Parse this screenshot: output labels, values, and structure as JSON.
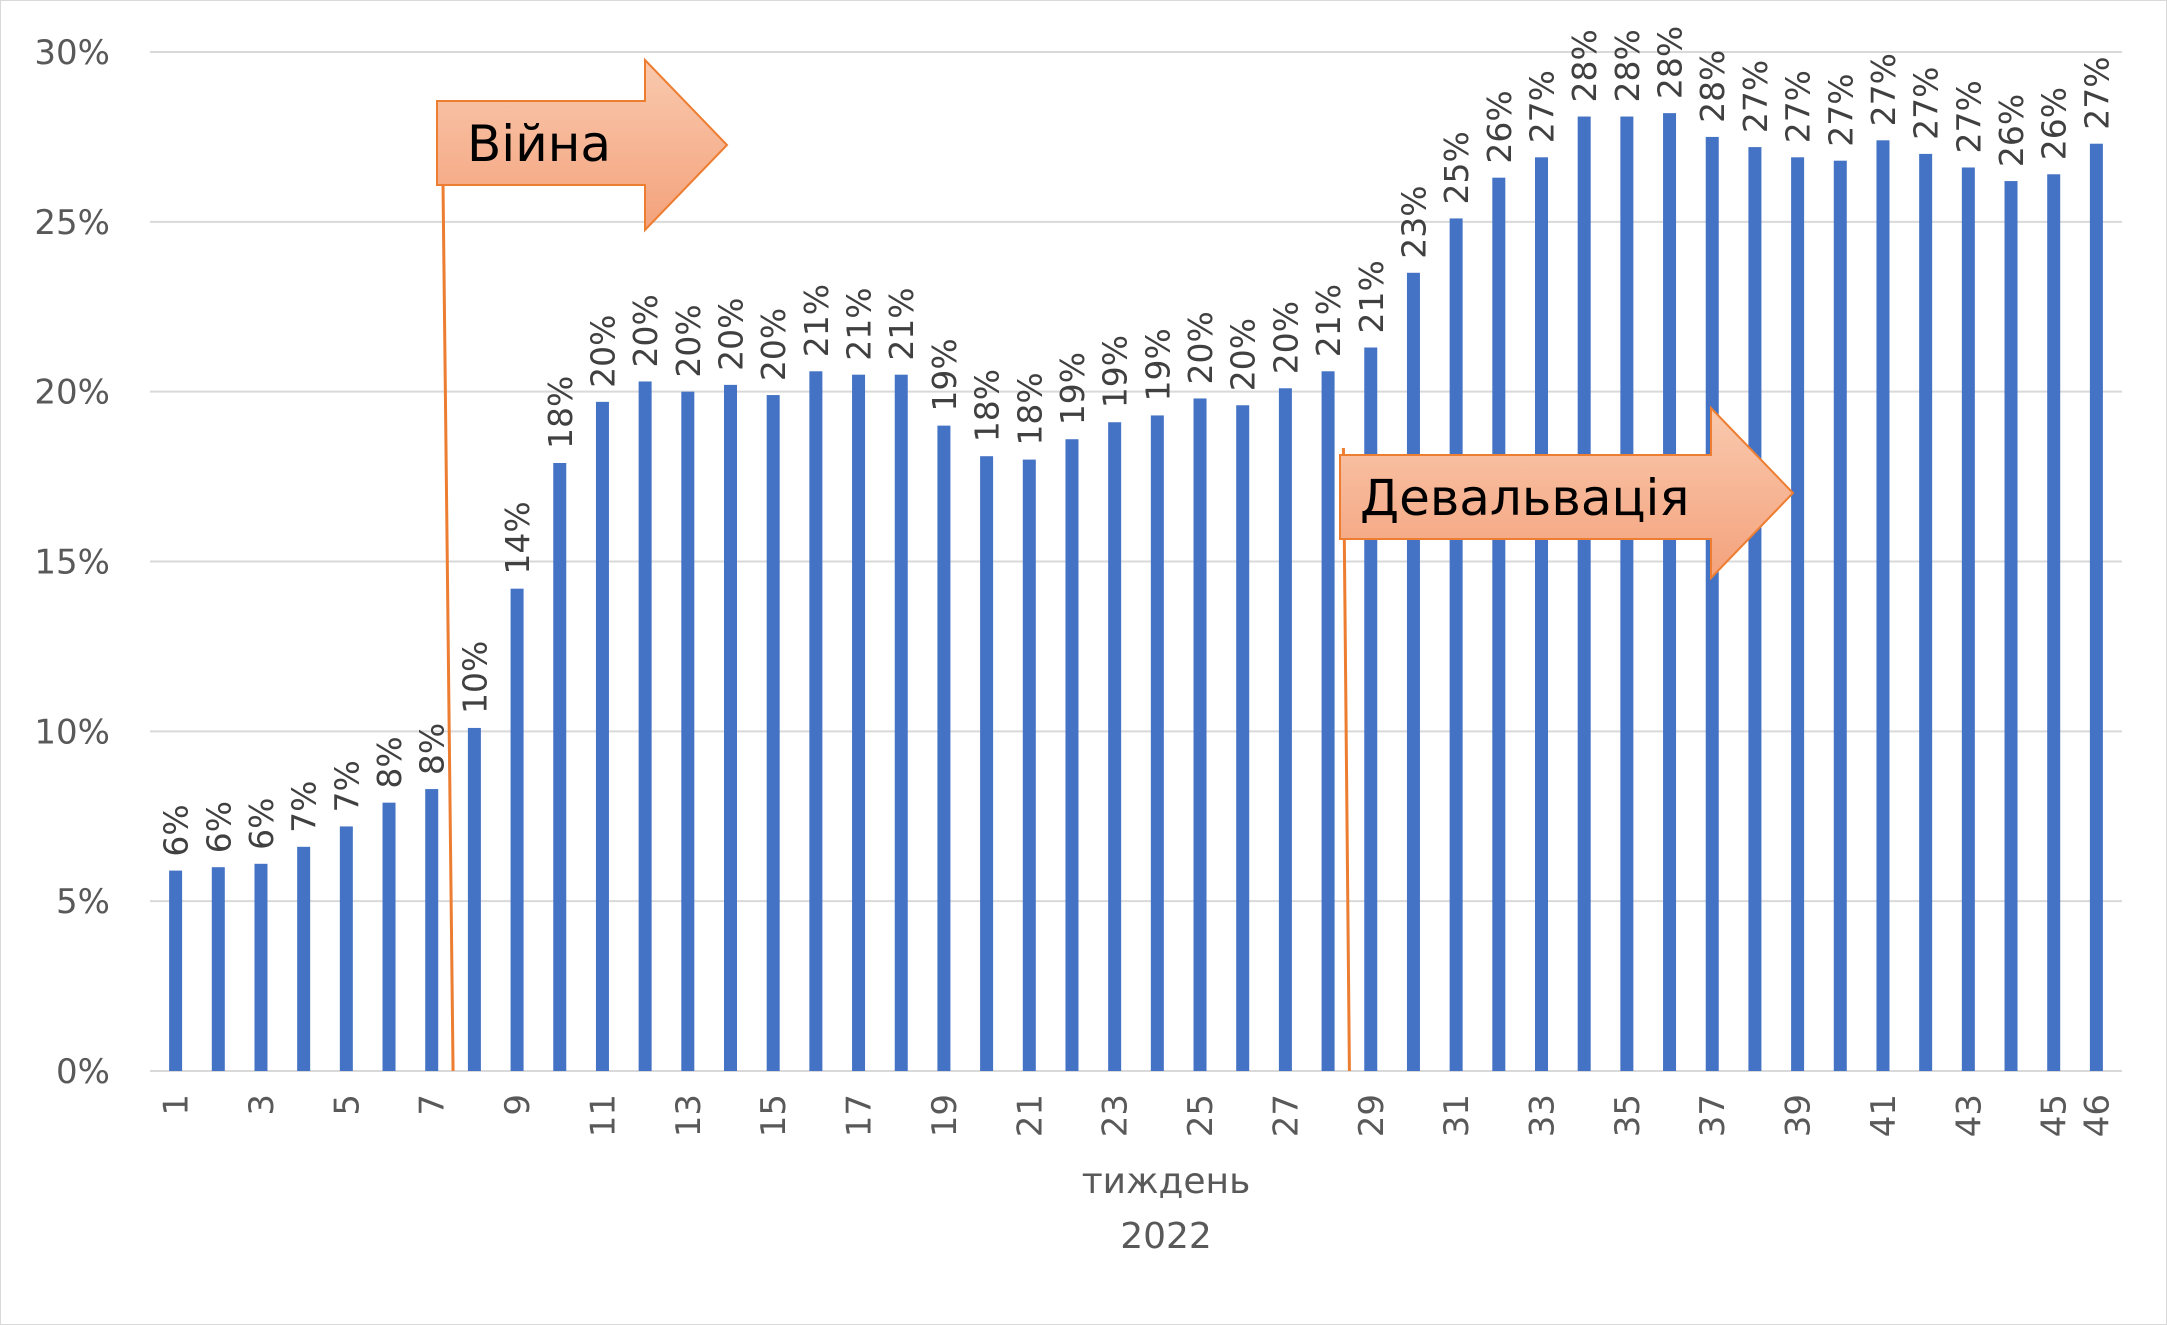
{
  "chart_data": {
    "type": "bar",
    "xlabel": "тиждень",
    "xlabel2": "2022",
    "ylim": [
      0,
      0.3
    ],
    "yticks": [
      "0%",
      "5%",
      "10%",
      "15%",
      "20%",
      "25%",
      "30%"
    ],
    "grid": true,
    "bar_color": "#4472C4",
    "categories": [
      1,
      2,
      3,
      4,
      5,
      6,
      7,
      8,
      9,
      10,
      11,
      12,
      13,
      14,
      15,
      16,
      17,
      18,
      19,
      20,
      21,
      22,
      23,
      24,
      25,
      26,
      27,
      28,
      29,
      30,
      31,
      32,
      33,
      34,
      35,
      36,
      37,
      38,
      39,
      40,
      41,
      42,
      43,
      44,
      45,
      46
    ],
    "x_tick_labels": [
      "1",
      "",
      "3",
      "",
      "5",
      "",
      "7",
      "",
      "9",
      "",
      "11",
      "",
      "13",
      "",
      "15",
      "",
      "17",
      "",
      "19",
      "",
      "21",
      "",
      "23",
      "",
      "25",
      "",
      "27",
      "",
      "29",
      "",
      "31",
      "",
      "33",
      "",
      "35",
      "",
      "37",
      "",
      "39",
      "",
      "41",
      "",
      "43",
      "",
      "45",
      "46"
    ],
    "values": [
      0.059,
      0.06,
      0.061,
      0.066,
      0.072,
      0.079,
      0.083,
      0.101,
      0.142,
      0.179,
      0.197,
      0.203,
      0.2,
      0.202,
      0.199,
      0.206,
      0.205,
      0.205,
      0.19,
      0.181,
      0.18,
      0.186,
      0.191,
      0.193,
      0.198,
      0.196,
      0.201,
      0.206,
      0.213,
      0.235,
      0.251,
      0.263,
      0.269,
      0.281,
      0.281,
      0.282,
      0.275,
      0.272,
      0.269,
      0.268,
      0.274,
      0.27,
      0.266,
      0.262,
      0.264,
      0.273
    ],
    "data_labels": [
      "6%",
      "6%",
      "6%",
      "7%",
      "7%",
      "8%",
      "8%",
      "10%",
      "14%",
      "18%",
      "20%",
      "20%",
      "20%",
      "20%",
      "20%",
      "21%",
      "21%",
      "21%",
      "19%",
      "18%",
      "18%",
      "19%",
      "19%",
      "19%",
      "20%",
      "20%",
      "20%",
      "21%",
      "21%",
      "23%",
      "25%",
      "26%",
      "27%",
      "28%",
      "28%",
      "28%",
      "28%",
      "27%",
      "27%",
      "27%",
      "27%",
      "27%",
      "27%",
      "26%",
      "26%",
      "27%"
    ],
    "annotations": [
      {
        "text": "Війна",
        "at_week": 7.5,
        "color": "#ED7D31"
      },
      {
        "text": "Девальвація",
        "at_week": 28.5,
        "color": "#ED7D31"
      }
    ]
  }
}
